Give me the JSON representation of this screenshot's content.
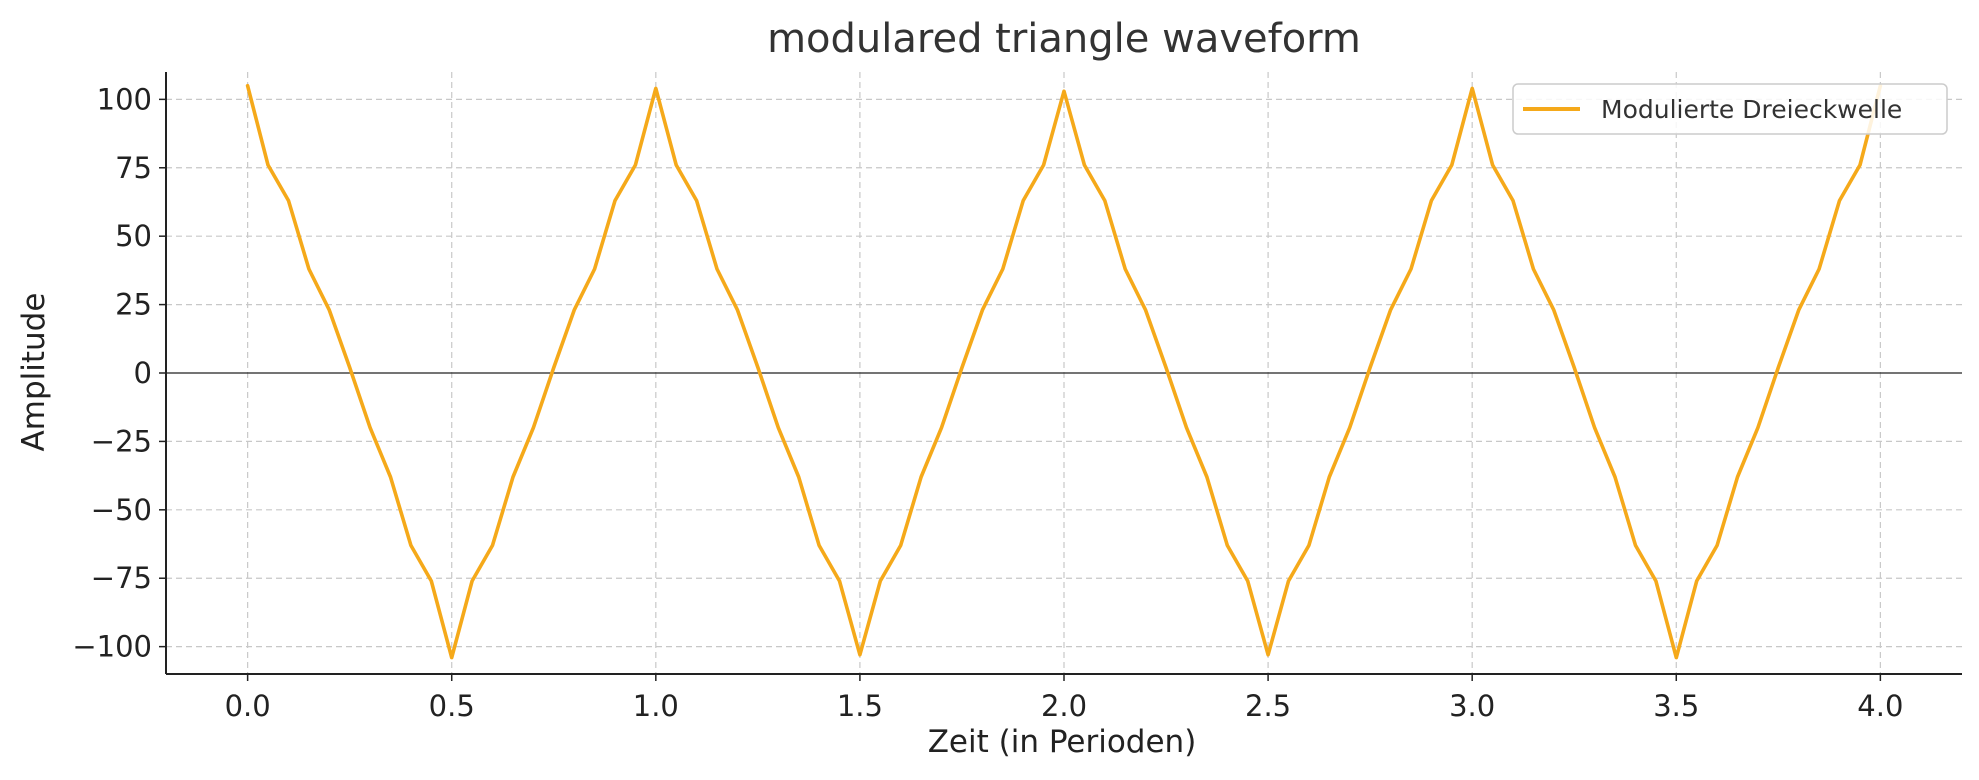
{
  "chart_data": {
    "type": "line",
    "title": "modulared triangle waveform",
    "xlabel": "Zeit (in Perioden)",
    "ylabel": "Amplitude",
    "xlim": [
      -0.2,
      4.2
    ],
    "ylim": [
      -110,
      110
    ],
    "xticks": [
      0.0,
      0.5,
      1.0,
      1.5,
      2.0,
      2.5,
      3.0,
      3.5,
      4.0
    ],
    "xtick_labels": [
      "0.0",
      "0.5",
      "1.0",
      "1.5",
      "2.0",
      "2.5",
      "3.0",
      "3.5",
      "4.0"
    ],
    "yticks": [
      100,
      75,
      50,
      25,
      0,
      -25,
      -50,
      -75,
      -100
    ],
    "ytick_labels": [
      "100",
      "75",
      "50",
      "25",
      "0",
      "−25",
      "−50",
      "−75",
      "−100"
    ],
    "grid": true,
    "zero_line": true,
    "legend": {
      "position": "top-right",
      "entries": [
        "Modulierte Dreieckwelle"
      ]
    },
    "series": [
      {
        "name": "Modulierte Dreieckwelle",
        "color": "#f5a91a",
        "points": [
          [
            0.0,
            105
          ],
          [
            0.05,
            76
          ],
          [
            0.1,
            63
          ],
          [
            0.15,
            38
          ],
          [
            0.2,
            23
          ],
          [
            0.25,
            2
          ],
          [
            0.3,
            -20
          ],
          [
            0.35,
            -38
          ],
          [
            0.4,
            -63
          ],
          [
            0.45,
            -76
          ],
          [
            0.5,
            -104
          ],
          [
            0.55,
            -76
          ],
          [
            0.6,
            -63
          ],
          [
            0.65,
            -38
          ],
          [
            0.7,
            -20
          ],
          [
            0.75,
            2
          ],
          [
            0.8,
            23
          ],
          [
            0.85,
            38
          ],
          [
            0.9,
            63
          ],
          [
            0.95,
            76
          ],
          [
            1.0,
            104
          ],
          [
            1.05,
            76
          ],
          [
            1.1,
            63
          ],
          [
            1.15,
            38
          ],
          [
            1.2,
            23
          ],
          [
            1.25,
            2
          ],
          [
            1.3,
            -20
          ],
          [
            1.35,
            -38
          ],
          [
            1.4,
            -63
          ],
          [
            1.45,
            -76
          ],
          [
            1.5,
            -103
          ],
          [
            1.55,
            -76
          ],
          [
            1.6,
            -63
          ],
          [
            1.65,
            -38
          ],
          [
            1.7,
            -20
          ],
          [
            1.75,
            2
          ],
          [
            1.8,
            23
          ],
          [
            1.85,
            38
          ],
          [
            1.9,
            63
          ],
          [
            1.95,
            76
          ],
          [
            2.0,
            103
          ],
          [
            2.05,
            76
          ],
          [
            2.1,
            63
          ],
          [
            2.15,
            38
          ],
          [
            2.2,
            23
          ],
          [
            2.25,
            2
          ],
          [
            2.3,
            -20
          ],
          [
            2.35,
            -38
          ],
          [
            2.4,
            -63
          ],
          [
            2.45,
            -76
          ],
          [
            2.5,
            -103
          ],
          [
            2.55,
            -76
          ],
          [
            2.6,
            -63
          ],
          [
            2.65,
            -38
          ],
          [
            2.7,
            -20
          ],
          [
            2.75,
            2
          ],
          [
            2.8,
            23
          ],
          [
            2.85,
            38
          ],
          [
            2.9,
            63
          ],
          [
            2.95,
            76
          ],
          [
            3.0,
            104
          ],
          [
            3.05,
            76
          ],
          [
            3.1,
            63
          ],
          [
            3.15,
            38
          ],
          [
            3.2,
            23
          ],
          [
            3.25,
            2
          ],
          [
            3.3,
            -20
          ],
          [
            3.35,
            -38
          ],
          [
            3.4,
            -63
          ],
          [
            3.45,
            -76
          ],
          [
            3.5,
            -104
          ],
          [
            3.55,
            -76
          ],
          [
            3.6,
            -63
          ],
          [
            3.65,
            -38
          ],
          [
            3.7,
            -20
          ],
          [
            3.75,
            2
          ],
          [
            3.8,
            23
          ],
          [
            3.85,
            38
          ],
          [
            3.9,
            63
          ],
          [
            3.95,
            76
          ],
          [
            4.0,
            105
          ]
        ]
      }
    ]
  }
}
